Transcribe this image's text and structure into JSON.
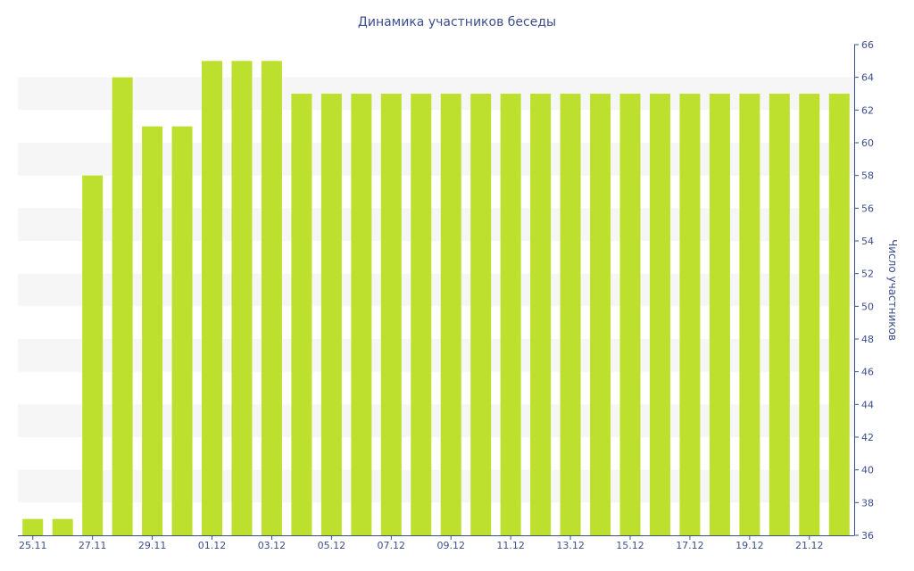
{
  "chart_data": {
    "type": "bar",
    "title": "Динамика участников беседы",
    "xlabel": "",
    "ylabel": "Число участников",
    "categories": [
      "25.11",
      "26.11",
      "27.11",
      "28.11",
      "29.11",
      "30.11",
      "01.12",
      "02.12",
      "03.12",
      "04.12",
      "05.12",
      "06.12",
      "07.12",
      "08.12",
      "09.12",
      "10.12",
      "11.12",
      "12.12",
      "13.12",
      "14.12",
      "15.12",
      "16.12",
      "17.12",
      "18.12",
      "19.12",
      "20.12",
      "21.12",
      "22.12"
    ],
    "x_tick_labels": [
      "25.11",
      "27.11",
      "29.11",
      "01.12",
      "03.12",
      "05.12",
      "07.12",
      "09.12",
      "11.12",
      "13.12",
      "15.12",
      "17.12",
      "19.12",
      "21.12"
    ],
    "values": [
      37,
      37,
      58,
      64,
      61,
      61,
      65,
      65,
      65,
      63,
      63,
      63,
      63,
      63,
      63,
      63,
      63,
      63,
      63,
      63,
      63,
      63,
      63,
      63,
      63,
      63,
      63,
      63
    ],
    "ylim": [
      36,
      66
    ],
    "y_ticks": [
      36,
      38,
      40,
      42,
      44,
      46,
      48,
      50,
      52,
      54,
      56,
      58,
      60,
      62,
      64,
      66
    ],
    "y_axis_position": "right",
    "grid": "alternating horizontal bands",
    "legend": "none",
    "colors": {
      "bar": "#bde02f",
      "band": "#f6f6f6",
      "axis": "#3b4f8f",
      "text": "#3b4f8f"
    }
  }
}
